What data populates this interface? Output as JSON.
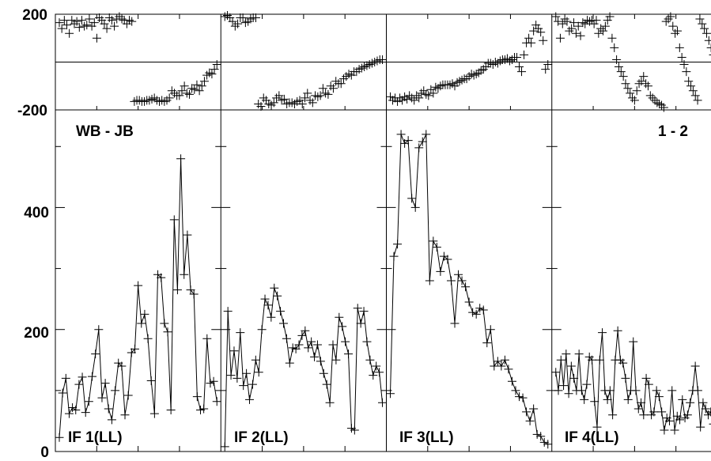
{
  "chart_data": {
    "type": "line",
    "baseline_label": "WB - JB",
    "polarization_label": "1 - 2",
    "phase_axis": {
      "ylim": [
        -200,
        200
      ],
      "ticks": [
        "200",
        "-200"
      ],
      "gridline_at": 0
    },
    "amplitude_axis": {
      "ylim": [
        0,
        560
      ],
      "ticks": [
        "400",
        "200",
        "0"
      ],
      "minor_ticks": [
        100,
        300,
        500
      ]
    },
    "panels": [
      {
        "label": "IF 1(LL)",
        "amplitude": [
          23,
          96,
          120,
          62,
          72,
          68,
          110,
          122,
          64,
          82,
          123,
          160,
          200,
          88,
          112,
          70,
          52,
          100,
          145,
          140,
          60,
          92,
          162,
          168,
          272,
          210,
          225,
          185,
          116,
          62,
          290,
          285,
          210,
          196,
          68,
          380,
          265,
          480,
          290,
          355,
          265,
          258,
          90,
          68,
          70,
          185,
          112,
          115,
          82
        ],
        "phase": [
          165,
          140,
          175,
          155,
          120,
          175,
          160,
          170,
          145,
          175,
          150,
          155,
          180,
          150,
          165,
          100,
          185,
          175,
          160,
          140,
          185,
          175,
          150,
          180,
          190,
          180,
          175,
          160,
          175,
          170,
          -165,
          -160,
          -160,
          -165,
          -165,
          -160,
          -160,
          -155,
          -150,
          -160,
          -165,
          -160,
          -165,
          -160,
          -150,
          -120,
          -130,
          -140,
          -140,
          -120,
          -100,
          -130,
          -135,
          -110,
          -115,
          -95,
          -120,
          -100,
          -80,
          -55,
          -45,
          -50,
          -30,
          -10
        ]
      },
      {
        "label": "IF 2(LL)",
        "amplitude": [
          8,
          230,
          125,
          165,
          120,
          195,
          108,
          128,
          85,
          110,
          150,
          130,
          200,
          250,
          240,
          220,
          268,
          255,
          230,
          210,
          185,
          145,
          170,
          168,
          175,
          190,
          198,
          170,
          180,
          155,
          175,
          148,
          128,
          110,
          80,
          175,
          150,
          220,
          205,
          180,
          160,
          38,
          35,
          235,
          210,
          230,
          180,
          150,
          125,
          140,
          130,
          80
        ],
        "phase": [
          190,
          195,
          185,
          170,
          150,
          160,
          185,
          185,
          165,
          170,
          180,
          185,
          185,
          -175,
          -185,
          -150,
          -160,
          -175,
          -180,
          -170,
          -150,
          -140,
          -160,
          -155,
          -175,
          -170,
          -170,
          -175,
          -165,
          -160,
          -175,
          -150,
          -130,
          -160,
          -170,
          -140,
          -145,
          -140,
          -110,
          -130,
          -135,
          -100,
          -110,
          -80,
          -90,
          -90,
          -70,
          -60,
          -50,
          -55,
          -40,
          -40,
          -30,
          -25,
          -20,
          -15,
          -10,
          -5,
          0,
          5,
          10,
          10
        ]
      },
      {
        "label": "IF 3(LL)",
        "amplitude": [
          95,
          320,
          340,
          520,
          505,
          510,
          415,
          400,
          498,
          508,
          520,
          280,
          345,
          335,
          295,
          320,
          315,
          280,
          210,
          290,
          280,
          270,
          245,
          228,
          225,
          235,
          232,
          178,
          200,
          140,
          148,
          140,
          150,
          135,
          115,
          100,
          90,
          88,
          65,
          50,
          70,
          28,
          25,
          15,
          12
        ],
        "phase": [
          -145,
          -160,
          -150,
          -165,
          -150,
          -160,
          -145,
          -155,
          -140,
          -150,
          -160,
          -140,
          -150,
          -130,
          -120,
          -135,
          -140,
          -115,
          -130,
          -105,
          -110,
          -100,
          -95,
          -95,
          -95,
          -95,
          -90,
          -100,
          -85,
          -80,
          -75,
          -70,
          -70,
          -60,
          -50,
          -55,
          -50,
          -45,
          -35,
          -30,
          -20,
          -5,
          -5,
          -10,
          0,
          -5,
          5,
          10,
          10,
          15,
          5,
          10,
          20,
          20,
          -20,
          -40,
          30,
          80,
          100,
          80,
          130,
          155,
          140,
          125,
          90,
          -30,
          -10
        ]
      },
      {
        "label": "IF 4(LL)",
        "amplitude": [
          130,
          100,
          150,
          108,
          160,
          95,
          140,
          120,
          100,
          160,
          100,
          85,
          110,
          155,
          150,
          82,
          40,
          150,
          195,
          100,
          85,
          100,
          60,
          150,
          198,
          150,
          145,
          120,
          85,
          100,
          180,
          100,
          70,
          80,
          60,
          120,
          110,
          60,
          65,
          100,
          90,
          65,
          35,
          55,
          50,
          100,
          35,
          58,
          52,
          85,
          55,
          60,
          80,
          100,
          140,
          100,
          40,
          80,
          70,
          60,
          65,
          45
        ],
        "phase": [
          190,
          170,
          100,
          160,
          180,
          170,
          130,
          140,
          165,
          120,
          150,
          110,
          165,
          160,
          175,
          170,
          175,
          160,
          175,
          120,
          140,
          130,
          150,
          175,
          190,
          100,
          60,
          10,
          -20,
          -40,
          -60,
          -90,
          -110,
          -130,
          -150,
          -160,
          -120,
          -90,
          -80,
          -60,
          -90,
          -100,
          -140,
          -150,
          -160,
          -170,
          -175,
          -180,
          -190,
          170,
          180,
          190,
          150,
          120,
          130,
          60,
          20,
          -10,
          -40,
          -80,
          -100,
          -120,
          -140,
          -160,
          180,
          160,
          140,
          120,
          90,
          60,
          30
        ]
      }
    ]
  }
}
